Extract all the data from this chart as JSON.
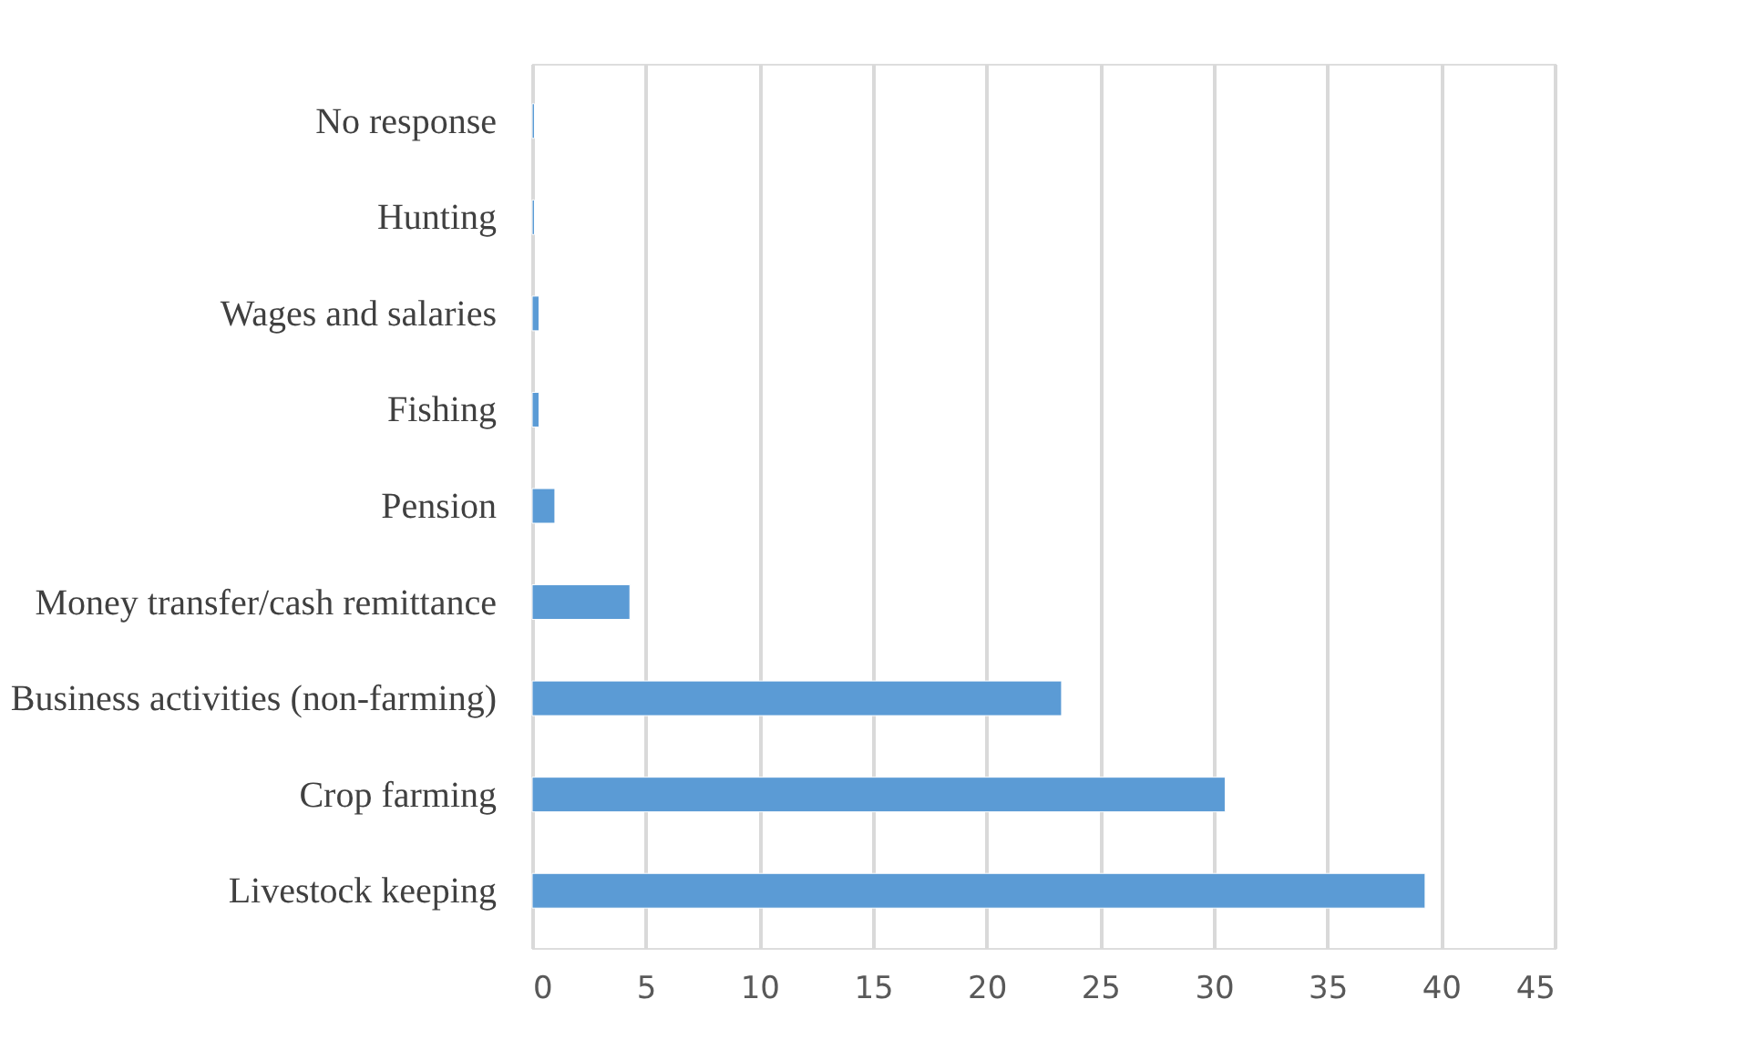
{
  "chart_data": {
    "type": "bar",
    "orientation": "horizontal",
    "categories": [
      "No response",
      "Hunting",
      "Wages and salaries",
      "Fishing",
      "Pension",
      "Money transfer/cash remittance",
      "Business activities (non-farming)",
      "Crop farming",
      "Livestock keeping"
    ],
    "values": [
      0.1,
      0.1,
      0.3,
      0.3,
      1.0,
      4.3,
      23.3,
      30.5,
      39.3
    ],
    "color": "#5b9bd5",
    "xlim": [
      0,
      45
    ],
    "xticks": [
      0,
      5,
      10,
      15,
      20,
      25,
      30,
      35,
      40,
      45
    ],
    "grid": "x"
  }
}
